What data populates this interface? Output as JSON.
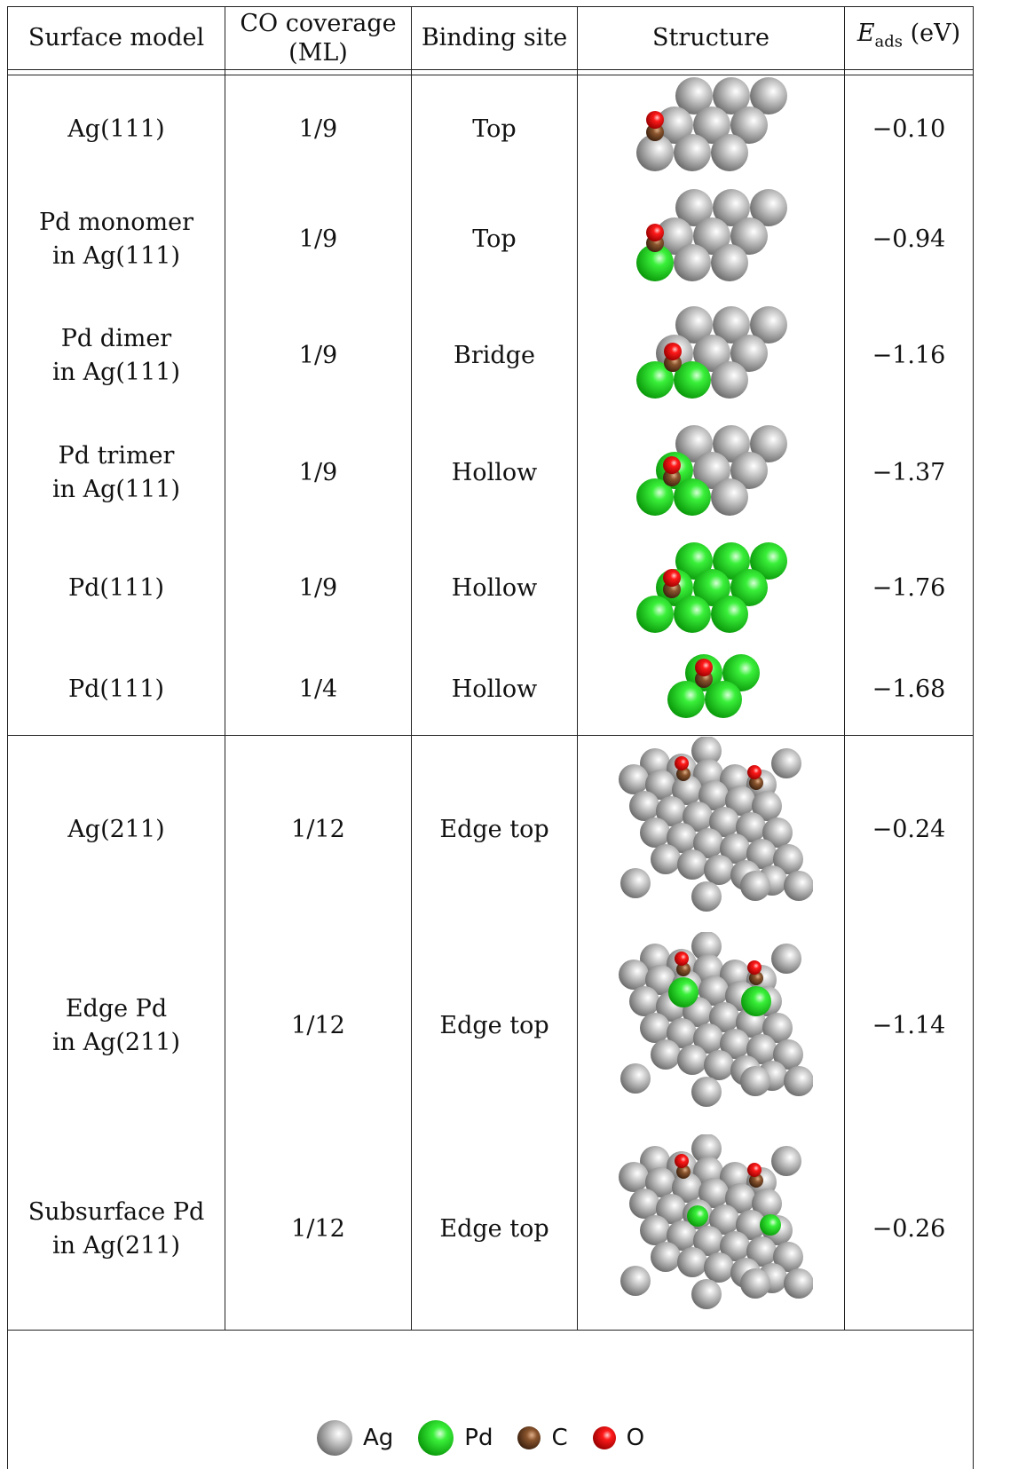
{
  "header": {
    "surface_model": "Surface model",
    "coverage_line1": "CO coverage",
    "coverage_line2": "(ML)",
    "binding_site": "Binding site",
    "structure": "Structure",
    "eads_symbol": "E",
    "eads_sub": "ads",
    "eads_unit": "(eV)"
  },
  "rows": [
    {
      "model1": "Ag(111)",
      "model2": "",
      "coverage": "1/9",
      "site": "Top",
      "eads": "−0.10"
    },
    {
      "model1": "Pd monomer",
      "model2": "in Ag(111)",
      "coverage": "1/9",
      "site": "Top",
      "eads": "−0.94"
    },
    {
      "model1": "Pd dimer",
      "model2": "in Ag(111)",
      "coverage": "1/9",
      "site": "Bridge",
      "eads": "−1.16"
    },
    {
      "model1": "Pd trimer",
      "model2": "in Ag(111)",
      "coverage": "1/9",
      "site": "Hollow",
      "eads": "−1.37"
    },
    {
      "model1": "Pd(111)",
      "model2": "",
      "coverage": "1/9",
      "site": "Hollow",
      "eads": "−1.76"
    },
    {
      "model1": "Pd(111)",
      "model2": "",
      "coverage": "1/4",
      "site": "Hollow",
      "eads": "−1.68"
    },
    {
      "model1": "Ag(211)",
      "model2": "",
      "coverage": "1/12",
      "site": "Edge top",
      "eads": "−0.24"
    },
    {
      "model1": "Edge Pd",
      "model2": "in Ag(211)",
      "coverage": "1/12",
      "site": "Edge top",
      "eads": "−1.14"
    },
    {
      "model1": "Subsurface Pd",
      "model2": "in Ag(211)",
      "coverage": "1/12",
      "site": "Edge top",
      "eads": "−0.26"
    }
  ],
  "legend": [
    {
      "label": "Ag",
      "color": "#a8a8a8"
    },
    {
      "label": "Pd",
      "color": "#22dd22"
    },
    {
      "label": "C",
      "color": "#7a4a2a"
    },
    {
      "label": "O",
      "color": "#ee1111"
    }
  ],
  "colors": {
    "ag": "#a8a8a8",
    "pd": "#22dd22",
    "c": "#7a4a2a",
    "o": "#ee1111"
  }
}
